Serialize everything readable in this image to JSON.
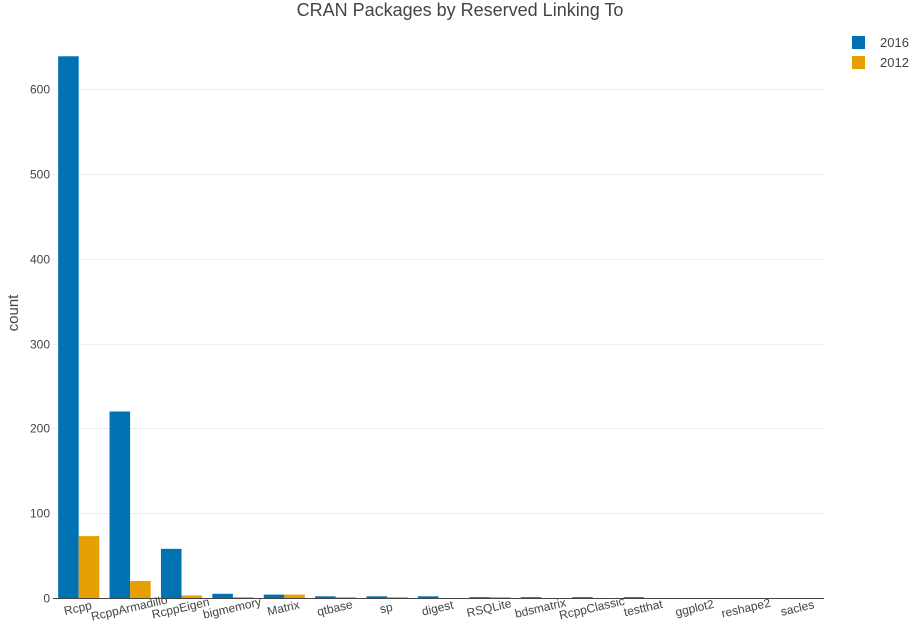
{
  "chart_data": {
    "type": "bar",
    "title": "CRAN Packages by Reserved Linking To",
    "xlabel": "",
    "ylabel": "count",
    "categories": [
      "Rcpp",
      "RcppArmadillo",
      "RcppEigen",
      "bigmemory",
      "Matrix",
      "qtbase",
      "sp",
      "digest",
      "RSQLite",
      "bdsmatrix",
      "RcppClassic",
      "testthat",
      "ggplot2",
      "reshape2",
      "sacles"
    ],
    "series": [
      {
        "name": "2016",
        "color": "#0072B2",
        "values": [
          639,
          220,
          58,
          5,
          4,
          2,
          2,
          2,
          1,
          1,
          1,
          1,
          0,
          0,
          0
        ]
      },
      {
        "name": "2012",
        "color": "#E69F00",
        "values": [
          73,
          20,
          3,
          1,
          4,
          1,
          1,
          0,
          1,
          0,
          0,
          0,
          0,
          0,
          0
        ]
      }
    ],
    "ylim": [
      0,
      670
    ],
    "yticks": [
      0,
      100,
      200,
      300,
      400,
      500,
      600
    ],
    "grid": true,
    "legend_position": "top-right"
  }
}
